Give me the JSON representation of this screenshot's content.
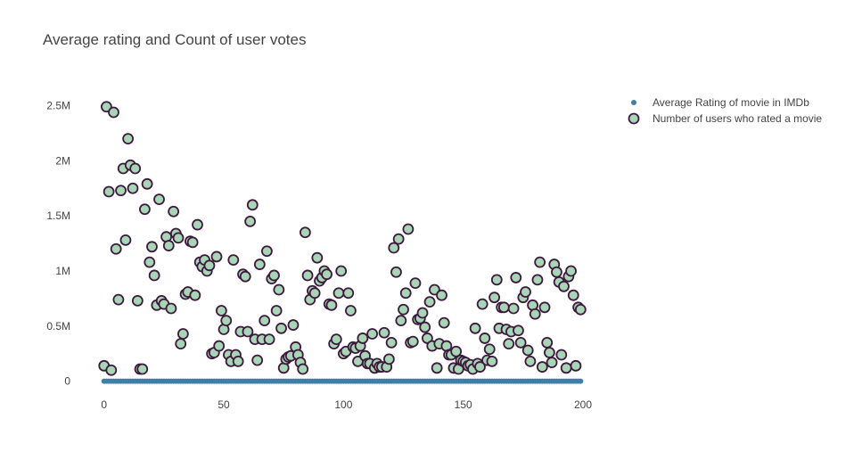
{
  "chart_data": {
    "type": "scatter",
    "title": "Average rating and Count of user votes",
    "xlabel": "",
    "ylabel": "",
    "xlim": [
      -4,
      200
    ],
    "ylim": [
      -100000,
      2650000
    ],
    "x_ticks": [
      0,
      50,
      100,
      150,
      200
    ],
    "x_tick_labels": [
      "0",
      "50",
      "100",
      "150",
      "200"
    ],
    "y_ticks": [
      0,
      500000,
      1000000,
      1500000,
      2000000,
      2500000
    ],
    "y_tick_labels": [
      "0",
      "0.5M",
      "1M",
      "1.5M",
      "2M",
      "2.5M"
    ],
    "grid": false,
    "legend_position": "top-right",
    "series": [
      {
        "name": "Average Rating of movie in IMDb",
        "marker": "dot",
        "color": "#3f7fa6",
        "x": [
          0,
          1,
          2,
          3,
          4,
          5,
          6,
          7,
          8,
          9,
          10,
          11,
          12,
          13,
          14,
          15,
          16,
          17,
          18,
          19,
          20,
          21,
          22,
          23,
          24,
          25,
          26,
          27,
          28,
          29,
          30,
          31,
          32,
          33,
          34,
          35,
          36,
          37,
          38,
          39,
          40,
          41,
          42,
          43,
          44,
          45,
          46,
          47,
          48,
          49,
          50,
          51,
          52,
          53,
          54,
          55,
          56,
          57,
          58,
          59,
          60,
          61,
          62,
          63,
          64,
          65,
          66,
          67,
          68,
          69,
          70,
          71,
          72,
          73,
          74,
          75,
          76,
          77,
          78,
          79,
          80,
          81,
          82,
          83,
          84,
          85,
          86,
          87,
          88,
          89,
          90,
          91,
          92,
          93,
          94,
          95,
          96,
          97,
          98,
          99,
          100,
          101,
          102,
          103,
          104,
          105,
          106,
          107,
          108,
          109,
          110,
          111,
          112,
          113,
          114,
          115,
          116,
          117,
          118,
          119,
          120,
          121,
          122,
          123,
          124,
          125,
          126,
          127,
          128,
          129,
          130,
          131,
          132,
          133,
          134,
          135,
          136,
          137,
          138,
          139,
          140,
          141,
          142,
          143,
          144,
          145,
          146,
          147,
          148,
          149,
          150,
          151,
          152,
          153,
          154,
          155,
          156,
          157,
          158,
          159,
          160,
          161,
          162,
          163,
          164,
          165,
          166,
          167,
          168,
          169,
          170,
          171,
          172,
          173,
          174,
          175,
          176,
          177,
          178,
          179,
          180,
          181,
          182,
          183,
          184,
          185,
          186,
          187,
          188,
          189,
          190,
          191,
          192,
          193,
          194,
          195,
          196,
          197,
          198,
          199
        ],
        "y": [
          8.4,
          8.1,
          8.0,
          7.9,
          8.2,
          8.3,
          8.0,
          8.1,
          7.8,
          8.0,
          8.6,
          8.5,
          8.1,
          8.3,
          8.0,
          8.4,
          8.2,
          8.1,
          8.0,
          7.9,
          8.1,
          8.3,
          8.2,
          8.0,
          8.4,
          8.1,
          8.0,
          7.9,
          8.2,
          8.1,
          8.0,
          8.3,
          8.1,
          8.2,
          8.0,
          7.9,
          8.1,
          8.2,
          8.0,
          8.1,
          8.3,
          8.0,
          8.2,
          8.1,
          8.0,
          7.9,
          8.1,
          8.0,
          8.2,
          8.1,
          8.0,
          8.3,
          8.1,
          8.0,
          8.2,
          8.1,
          8.0,
          7.9,
          8.1,
          8.2,
          8.0,
          8.1,
          8.3,
          8.0,
          8.1,
          8.2,
          8.0,
          7.9,
          8.1,
          8.0,
          8.2,
          8.1,
          8.0,
          8.3,
          8.1,
          8.0,
          8.2,
          8.1,
          8.0,
          7.9,
          8.1,
          8.0,
          8.2,
          8.1,
          8.0,
          8.3,
          8.1,
          8.0,
          8.2,
          8.1,
          8.0,
          7.9,
          8.1,
          8.2,
          8.0,
          8.1,
          8.3,
          8.0,
          8.1,
          8.2,
          8.0,
          7.9,
          8.1,
          8.0,
          8.2,
          8.1,
          8.0,
          8.3,
          8.1,
          8.0,
          8.2,
          8.1,
          8.0,
          7.9,
          8.1,
          8.0,
          8.2,
          8.1,
          8.0,
          8.3,
          8.1,
          8.0,
          8.2,
          8.1,
          8.0,
          7.9,
          8.1,
          8.2,
          8.0,
          8.1,
          8.3,
          8.0,
          8.1,
          8.2,
          8.0,
          7.9,
          8.1,
          8.0,
          8.2,
          8.1,
          8.0,
          8.3,
          8.1,
          8.0,
          8.2,
          8.1,
          8.0,
          7.9,
          8.1,
          8.0,
          8.2,
          8.1,
          8.0,
          8.3,
          8.1,
          8.0,
          8.2,
          8.1,
          8.0,
          7.9,
          8.1,
          8.2,
          8.0,
          8.1,
          8.3,
          8.0,
          8.1,
          8.2,
          8.0,
          7.9,
          8.1,
          8.0,
          8.2,
          8.1,
          8.0,
          8.3,
          8.1,
          8.0,
          8.2,
          8.1,
          8.0,
          7.9,
          8.1,
          8.0,
          8.2,
          8.1,
          8.0,
          8.3,
          8.1,
          8.0,
          8.2,
          8.1,
          8.0,
          7.9,
          8.1,
          8.2,
          8.0,
          8.1,
          8.3,
          8.0
        ]
      },
      {
        "name": "Number of users who rated a movie",
        "marker": "circle",
        "color": "#a8d5b5",
        "stroke_color": "#3d1a3d",
        "x": [
          0,
          1,
          2,
          3,
          4,
          5,
          6,
          7,
          8,
          9,
          10,
          11,
          12,
          13,
          14,
          15,
          16,
          17,
          18,
          19,
          20,
          21,
          22,
          23,
          24,
          25,
          26,
          27,
          28,
          29,
          30,
          31,
          32,
          33,
          34,
          35,
          36,
          37,
          38,
          39,
          40,
          41,
          42,
          43,
          44,
          45,
          46,
          47,
          48,
          49,
          50,
          51,
          52,
          53,
          54,
          55,
          56,
          57,
          58,
          59,
          60,
          61,
          62,
          63,
          64,
          65,
          66,
          67,
          68,
          69,
          70,
          71,
          72,
          73,
          74,
          75,
          76,
          77,
          78,
          79,
          80,
          81,
          82,
          83,
          84,
          85,
          86,
          87,
          88,
          89,
          90,
          91,
          92,
          93,
          94,
          95,
          96,
          97,
          98,
          99,
          100,
          101,
          102,
          103,
          104,
          105,
          106,
          107,
          108,
          109,
          110,
          111,
          112,
          113,
          114,
          115,
          116,
          117,
          118,
          119,
          120,
          121,
          122,
          123,
          124,
          125,
          126,
          127,
          128,
          129,
          130,
          131,
          132,
          133,
          134,
          135,
          136,
          137,
          138,
          139,
          140,
          141,
          142,
          143,
          144,
          145,
          146,
          147,
          148,
          149,
          150,
          151,
          152,
          153,
          154,
          155,
          156,
          157,
          158,
          159,
          160,
          161,
          162,
          163,
          164,
          165,
          166,
          167,
          168,
          169,
          170,
          171,
          172,
          173,
          174,
          175,
          176,
          177,
          178,
          179,
          180,
          181,
          182,
          183,
          184,
          185,
          186,
          187,
          188,
          189,
          190,
          191,
          192,
          193,
          194,
          195,
          196,
          197,
          198,
          199
        ],
        "y": [
          140000,
          2490000,
          1720000,
          100000,
          2440000,
          1200000,
          740000,
          1730000,
          1930000,
          1280000,
          2200000,
          1960000,
          1750000,
          1930000,
          730000,
          110000,
          110000,
          1560000,
          1790000,
          1080000,
          1220000,
          960000,
          690000,
          1650000,
          730000,
          700000,
          1310000,
          1230000,
          660000,
          1540000,
          1340000,
          1300000,
          340000,
          430000,
          790000,
          810000,
          1270000,
          1260000,
          780000,
          1420000,
          1080000,
          1040000,
          1100000,
          1000000,
          1050000,
          250000,
          260000,
          1130000,
          320000,
          640000,
          470000,
          550000,
          240000,
          180000,
          1100000,
          240000,
          180000,
          450000,
          970000,
          950000,
          450000,
          1450000,
          1600000,
          380000,
          190000,
          1060000,
          380000,
          550000,
          1180000,
          380000,
          930000,
          960000,
          640000,
          830000,
          480000,
          120000,
          200000,
          220000,
          230000,
          510000,
          310000,
          240000,
          170000,
          110000,
          1350000,
          960000,
          740000,
          820000,
          800000,
          1120000,
          910000,
          940000,
          1000000,
          970000,
          700000,
          690000,
          340000,
          380000,
          800000,
          1000000,
          250000,
          270000,
          800000,
          640000,
          310000,
          300000,
          180000,
          320000,
          390000,
          230000,
          160000,
          160000,
          430000,
          120000,
          160000,
          130000,
          130000,
          440000,
          130000,
          200000,
          350000,
          1210000,
          990000,
          1290000,
          550000,
          650000,
          800000,
          1380000,
          350000,
          360000,
          890000,
          560000,
          570000,
          620000,
          490000,
          390000,
          720000,
          320000,
          830000,
          120000,
          340000,
          780000,
          530000,
          320000,
          240000,
          240000,
          120000,
          270000,
          110000,
          190000,
          180000,
          170000,
          140000,
          150000,
          110000,
          480000,
          160000,
          130000,
          700000,
          390000,
          190000,
          290000,
          180000,
          760000,
          920000,
          480000,
          670000,
          670000,
          470000,
          340000,
          450000,
          660000,
          940000,
          460000,
          350000,
          760000,
          810000,
          280000,
          180000,
          690000,
          610000,
          920000,
          1080000,
          130000,
          670000,
          350000,
          260000,
          170000,
          1060000,
          990000,
          900000,
          240000,
          860000,
          120000,
          950000,
          1000000,
          780000,
          140000,
          670000,
          650000
        ]
      }
    ]
  }
}
